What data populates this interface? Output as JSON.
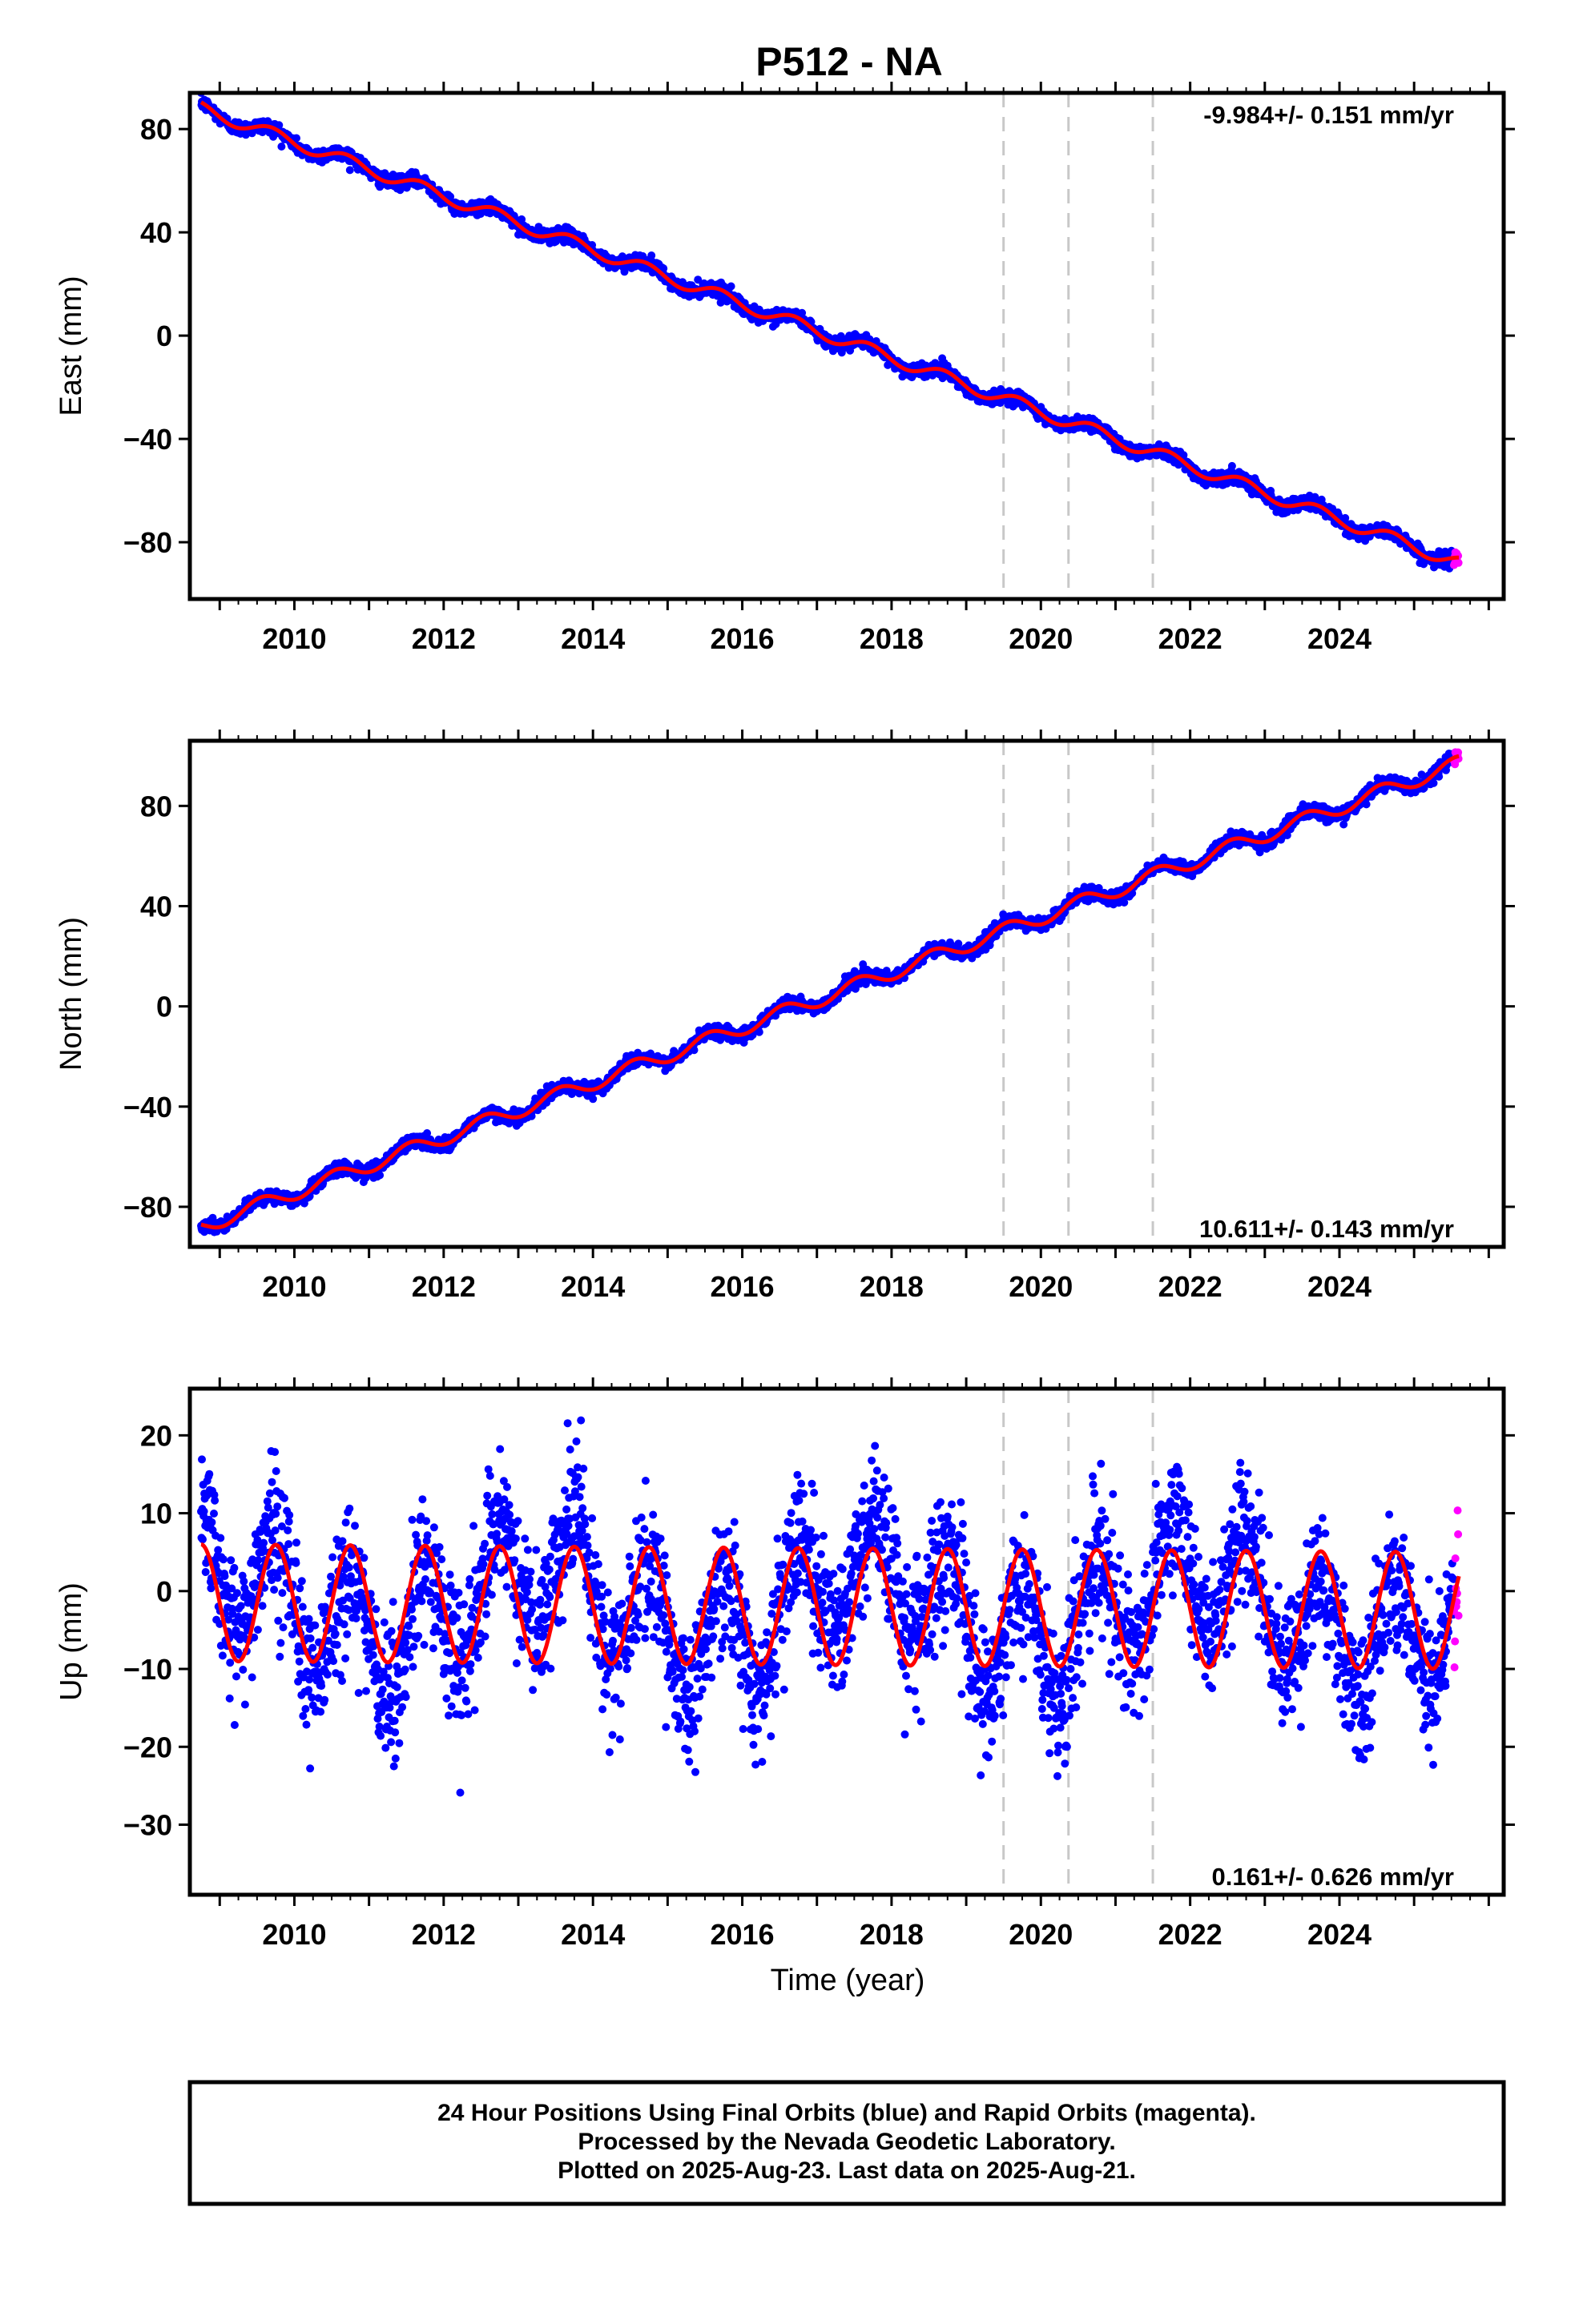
{
  "title": "P512 - NA",
  "colors": {
    "final": "#0000ff",
    "rapid": "#ff00ff",
    "model": "#ff0000",
    "event": "#c8c8c8"
  },
  "chart_data": [
    {
      "type": "scatter",
      "ylabel": "East (mm)",
      "rate_label": "-9.984+/- 0.151 mm/yr",
      "rate_position": "top-right",
      "xlim": [
        2008.6,
        2026.2
      ],
      "ylim": [
        -102,
        94
      ],
      "yticks": [
        80,
        40,
        0,
        -40,
        -80
      ],
      "ytick_labels": [
        "80",
        "40",
        "0",
        "−40",
        "−80"
      ],
      "xticks": [
        2010,
        2012,
        2014,
        2016,
        2018,
        2020,
        2022,
        2024
      ],
      "xtick_labels": [
        "2010",
        "2012",
        "2014",
        "2016",
        "2018",
        "2020",
        "2022",
        "2024"
      ],
      "event_lines": [
        2019.5,
        2020.37,
        2021.5
      ],
      "model": {
        "start_year": 2008.75,
        "start_value": 88,
        "end_year": 2025.6,
        "end_value": -88,
        "annual_amplitude": 2.5,
        "semiannual_amplitude": 0,
        "phase_peak": 0.7
      },
      "scatter_sd": 1.3,
      "last_final_year": 2025.53,
      "series": [
        {
          "name": "Final Orbits",
          "color": "#0000ff"
        },
        {
          "name": "Rapid Orbits",
          "color": "#ff00ff"
        }
      ]
    },
    {
      "type": "scatter",
      "ylabel": "North (mm)",
      "rate_label": "10.611+/- 0.143 mm/yr",
      "rate_position": "bottom-right",
      "xlim": [
        2008.6,
        2026.2
      ],
      "ylim": [
        -96,
        106
      ],
      "yticks": [
        80,
        40,
        0,
        -40,
        -80
      ],
      "ytick_labels": [
        "80",
        "40",
        "0",
        "−40",
        "−80"
      ],
      "xticks": [
        2010,
        2012,
        2014,
        2016,
        2018,
        2020,
        2022,
        2024
      ],
      "xtick_labels": [
        "2010",
        "2012",
        "2014",
        "2016",
        "2018",
        "2020",
        "2022",
        "2024"
      ],
      "event_lines": [
        2019.5,
        2020.37,
        2021.5
      ],
      "model": {
        "start_year": 2008.75,
        "start_value": -88,
        "end_year": 2025.6,
        "end_value": 97,
        "annual_amplitude": 3.0,
        "semiannual_amplitude": 0,
        "phase_peak": 0.55
      },
      "scatter_sd": 1.3,
      "last_final_year": 2025.53,
      "series": [
        {
          "name": "Final Orbits",
          "color": "#0000ff"
        },
        {
          "name": "Rapid Orbits",
          "color": "#ff00ff"
        }
      ]
    },
    {
      "type": "scatter",
      "ylabel": "Up (mm)",
      "xlabel": "Time (year)",
      "rate_label": "0.161+/- 0.626 mm/yr",
      "rate_position": "bottom-right",
      "xlim": [
        2008.6,
        2026.2
      ],
      "ylim": [
        -39,
        26
      ],
      "yticks": [
        20,
        10,
        0,
        -10,
        -20,
        -30
      ],
      "ytick_labels": [
        "20",
        "10",
        "0",
        "−10",
        "−20",
        "−30"
      ],
      "xticks": [
        2010,
        2012,
        2014,
        2016,
        2018,
        2020,
        2022,
        2024
      ],
      "xtick_labels": [
        "2010",
        "2012",
        "2014",
        "2016",
        "2018",
        "2020",
        "2022",
        "2024"
      ],
      "event_lines": [
        2019.5,
        2020.37,
        2021.5
      ],
      "model": {
        "start_year": 2008.75,
        "start_value": -1.5,
        "end_year": 2025.6,
        "end_value": -2.5,
        "annual_amplitude": 7.5,
        "semiannual_amplitude": 0,
        "phase_peak": 0.75
      },
      "scatter_sd": 4.2,
      "last_final_year": 2025.53,
      "series": [
        {
          "name": "Final Orbits",
          "color": "#0000ff"
        },
        {
          "name": "Rapid Orbits",
          "color": "#ff00ff"
        }
      ]
    }
  ],
  "footer": {
    "line1": "24 Hour Positions Using Final Orbits (blue) and Rapid Orbits (magenta).",
    "line2": "Processed by the Nevada Geodetic Laboratory.",
    "line3": "Plotted on 2025-Aug-23. Last data on 2025-Aug-21."
  }
}
